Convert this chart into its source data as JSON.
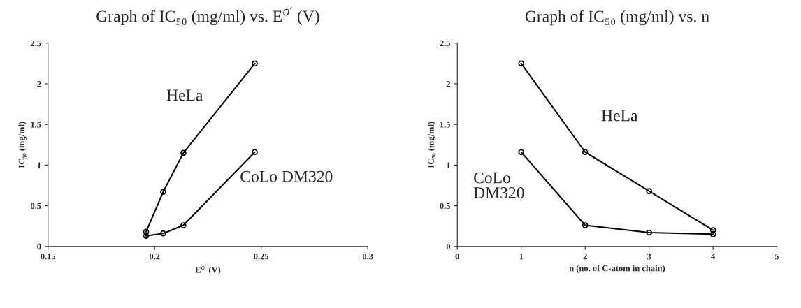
{
  "chart_data": [
    {
      "type": "line",
      "title": "Graph of IC₅₀ (mg/ml) vs. E$^{o′}$ (V)",
      "xlabel": "E$^{o′}$ (V)",
      "ylabel": "IC₅₀ (mg/ml)",
      "x": [
        0.196,
        0.204,
        0.2135,
        0.247
      ],
      "series": [
        {
          "name": "HeLa",
          "color": "#000000",
          "values": [
            0.18,
            0.67,
            1.15,
            2.25
          ]
        },
        {
          "name": "CoLo DM320",
          "color": "#000000",
          "values": [
            0.13,
            0.16,
            0.26,
            1.16
          ]
        }
      ],
      "xlim": [
        0.15,
        0.3
      ],
      "xticks": [
        0.15,
        0.2,
        0.25,
        0.3
      ],
      "ylim": [
        0,
        2.5
      ],
      "yticks": [
        0,
        0.5,
        1,
        1.5,
        2,
        2.5
      ],
      "marker": "circle",
      "line_style": "solid",
      "grid": false,
      "legend": false
    },
    {
      "type": "line",
      "title": "Graph of IC₅₀ (mg/ml) vs. n",
      "xlabel": "n (no. of C-atom in chain)",
      "ylabel": "IC₅₀ (mg/ml)",
      "x": [
        1,
        2,
        3,
        4
      ],
      "series": [
        {
          "name": "HeLa",
          "color": "#000000",
          "values": [
            2.25,
            1.16,
            0.68,
            0.2
          ]
        },
        {
          "name": "CoLo DM320",
          "color": "#000000",
          "values": [
            1.16,
            0.26,
            0.17,
            0.15
          ]
        }
      ],
      "xlim": [
        0,
        5
      ],
      "xticks": [
        0,
        1,
        2,
        3,
        4,
        5
      ],
      "ylim": [
        0,
        2.5
      ],
      "yticks": [
        0,
        0.5,
        1,
        1.5,
        2,
        2.5
      ],
      "marker": "circle",
      "line_style": "solid",
      "grid": false,
      "legend": false
    }
  ]
}
